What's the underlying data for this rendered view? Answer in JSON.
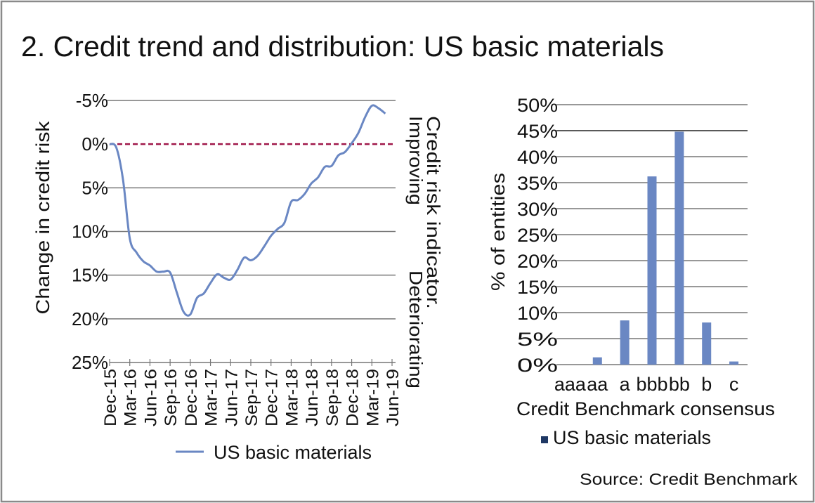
{
  "title": "2. Credit trend and distribution: US basic materials",
  "source": "Source: Credit Benchmark",
  "colors": {
    "series": "#6A87C3",
    "zero_line": "#A0174A",
    "grid": "#777777",
    "frame": "#8a8a8a"
  },
  "chart_data": [
    {
      "type": "line",
      "ylabel": "Change in credit risk",
      "right_labels": {
        "line1": "Credit risk indicator.",
        "improving": "Improving",
        "deteriorating": "Deteriorating"
      },
      "ylim": [
        -5,
        25
      ],
      "y_reversed": true,
      "y_ticks": [
        "-5%",
        "0%",
        "5%",
        "10%",
        "15%",
        "20%",
        "25%"
      ],
      "y_tick_values": [
        -5,
        0,
        5,
        10,
        15,
        20,
        25
      ],
      "x_ticks": [
        "Dec-15",
        "Mar-16",
        "Jun-16",
        "Sep-16",
        "Dec-16",
        "Mar-17",
        "Jun-17",
        "Sep-17",
        "Dec-17",
        "Mar-18",
        "Jun-18",
        "Sep-18",
        "Dec-18",
        "Mar-19",
        "Jun-19"
      ],
      "grid": true,
      "reference_line": 0,
      "legend": {
        "position": "bottom",
        "label": "US basic materials"
      },
      "series": [
        {
          "name": "US basic materials",
          "x": [
            "Dec-15",
            "Jan-16",
            "Feb-16",
            "Mar-16",
            "Apr-16",
            "May-16",
            "Jun-16",
            "Jul-16",
            "Aug-16",
            "Sep-16",
            "Oct-16",
            "Nov-16",
            "Dec-16",
            "Jan-17",
            "Feb-17",
            "Mar-17",
            "Apr-17",
            "May-17",
            "Jun-17",
            "Jul-17",
            "Aug-17",
            "Sep-17",
            "Oct-17",
            "Nov-17",
            "Dec-17",
            "Jan-18",
            "Feb-18",
            "Mar-18",
            "Apr-18",
            "May-18",
            "Jun-18",
            "Jul-18",
            "Aug-18",
            "Sep-18",
            "Oct-18",
            "Nov-18",
            "Dec-18",
            "Jan-19",
            "Feb-19",
            "Mar-19",
            "Apr-19",
            "May-19"
          ],
          "values": [
            0,
            0.4,
            4.1,
            10.8,
            12.4,
            13.4,
            13.9,
            14.6,
            14.6,
            14.7,
            17.0,
            19.2,
            19.5,
            17.6,
            17.1,
            15.9,
            14.9,
            15.3,
            15.5,
            14.4,
            13.0,
            13.3,
            12.8,
            11.7,
            10.5,
            9.7,
            9.0,
            6.6,
            6.4,
            5.7,
            4.5,
            3.8,
            2.6,
            2.5,
            1.3,
            0.9,
            -0.1,
            -1.3,
            -3.1,
            -4.4,
            -4.1,
            -3.5
          ]
        }
      ]
    },
    {
      "type": "bar",
      "xlabel": "Credit Benchmark consensus",
      "ylabel": "% of entities",
      "ylim": [
        0,
        50
      ],
      "y_ticks": [
        "0%",
        "5%",
        "10%",
        "15%",
        "20%",
        "25%",
        "30%",
        "35%",
        "40%",
        "45%",
        "50%"
      ],
      "y_tick_values": [
        0,
        5,
        10,
        15,
        20,
        25,
        30,
        35,
        40,
        45,
        50
      ],
      "categories": [
        "aaa",
        "aa",
        "a",
        "bbb",
        "bb",
        "b",
        "c"
      ],
      "grid": true,
      "legend": {
        "position": "bottom",
        "label": "US basic materials"
      },
      "series": [
        {
          "name": "US basic materials",
          "values": [
            0,
            1.4,
            8.5,
            36.2,
            44.8,
            8.1,
            0.6
          ]
        }
      ]
    }
  ]
}
